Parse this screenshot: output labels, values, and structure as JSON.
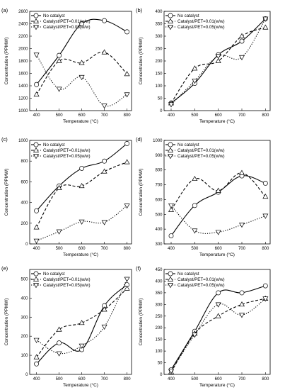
{
  "figure": {
    "stroke_color": "#000000",
    "background": "#ffffff"
  },
  "marker_shapes": [
    "circle",
    "triangle-up",
    "triangle-down"
  ],
  "line_styles": [
    "solid",
    "dashed",
    "dotted"
  ],
  "chart_data": [
    {
      "panel_label": "(a)",
      "type": "line",
      "xlabel": "Temperature (°C)",
      "ylabel": "Concentration (PPMW)",
      "xlim": [
        370,
        820
      ],
      "ylim": [
        1000,
        2600
      ],
      "xticks": [
        400,
        500,
        600,
        700,
        800
      ],
      "yticks": [
        1000,
        1200,
        1400,
        1600,
        1800,
        2000,
        2200,
        2400,
        2600
      ],
      "legend_position": "top-left",
      "x": [
        400,
        500,
        600,
        700,
        800
      ],
      "series": [
        {
          "name": "No catalyst",
          "values": [
            1420,
            1890,
            2400,
            2450,
            2270
          ]
        },
        {
          "name": "Catalyst/PET=0.01(w/w)",
          "values": [
            1260,
            1800,
            1770,
            1940,
            1590
          ]
        },
        {
          "name": "Catalyst/PET=0.05(w/w)",
          "values": [
            1900,
            1350,
            1540,
            1080,
            1260
          ]
        }
      ]
    },
    {
      "panel_label": "(b)",
      "type": "line",
      "xlabel": "Temperature (°C)",
      "ylabel": "Concentration (PPMW)",
      "xlim": [
        370,
        820
      ],
      "ylim": [
        0,
        400
      ],
      "xticks": [
        400,
        500,
        600,
        700,
        800
      ],
      "yticks": [
        0,
        50,
        100,
        150,
        200,
        250,
        300,
        350,
        400
      ],
      "legend_position": "top-left",
      "x": [
        400,
        500,
        600,
        700,
        800
      ],
      "series": [
        {
          "name": "No catalyst",
          "values": [
            30,
            110,
            225,
            280,
            370
          ]
        },
        {
          "name": "Catalyst/PET=0.01(w/w)",
          "values": [
            30,
            170,
            200,
            300,
            335
          ]
        },
        {
          "name": "Catalyst/PET=0.05(w/w)",
          "values": [
            25,
            120,
            220,
            215,
            370
          ]
        }
      ]
    },
    {
      "panel_label": "(c)",
      "type": "line",
      "xlabel": "Temperature (°C)",
      "ylabel": "Concentration (PPMW)",
      "xlim": [
        370,
        820
      ],
      "ylim": [
        0,
        1000
      ],
      "xticks": [
        400,
        500,
        600,
        700,
        800
      ],
      "yticks": [
        0,
        200,
        400,
        600,
        800,
        1000
      ],
      "legend_position": "top-left",
      "x": [
        400,
        500,
        600,
        700,
        800
      ],
      "series": [
        {
          "name": "No catalyst",
          "values": [
            320,
            560,
            730,
            800,
            970
          ]
        },
        {
          "name": "Catalyst/PET=0.01(w/w)",
          "values": [
            160,
            540,
            560,
            700,
            790
          ]
        },
        {
          "name": "Catalyst/PET=0.05(w/w)",
          "values": [
            30,
            120,
            215,
            210,
            370
          ]
        }
      ]
    },
    {
      "panel_label": "(d)",
      "type": "line",
      "xlabel": "Temperature (°C)",
      "ylabel": "Concentration (PPMW)",
      "xlim": [
        370,
        820
      ],
      "ylim": [
        300,
        1000
      ],
      "xticks": [
        400,
        500,
        600,
        700,
        800
      ],
      "yticks": [
        300,
        400,
        500,
        600,
        700,
        800,
        900,
        1000
      ],
      "legend_position": "top-left",
      "x": [
        400,
        500,
        600,
        700,
        800
      ],
      "series": [
        {
          "name": "No catalyst",
          "values": [
            355,
            560,
            650,
            760,
            710
          ]
        },
        {
          "name": "Catalyst/PET=0.01(w/w)",
          "values": [
            530,
            740,
            660,
            780,
            620
          ]
        },
        {
          "name": "Catalyst/PET=0.05(w/w)",
          "values": [
            560,
            390,
            380,
            430,
            490
          ]
        }
      ]
    },
    {
      "panel_label": "(e)",
      "type": "line",
      "xlabel": "Temperature (°C)",
      "ylabel": "Concentration (PPMW)",
      "xlim": [
        370,
        820
      ],
      "ylim": [
        0,
        550
      ],
      "xticks": [
        400,
        500,
        600,
        700,
        800
      ],
      "yticks": [
        0,
        100,
        200,
        300,
        400,
        500
      ],
      "legend_position": "top-left",
      "x": [
        400,
        500,
        600,
        700,
        800
      ],
      "series": [
        {
          "name": "No catalyst",
          "values": [
            55,
            165,
            130,
            360,
            470
          ]
        },
        {
          "name": "Catalyst/PET=0.01(w/w)",
          "values": [
            90,
            235,
            270,
            340,
            450
          ]
        },
        {
          "name": "Catalyst/PET=0.05(w/w)",
          "values": [
            180,
            110,
            150,
            250,
            500
          ]
        }
      ]
    },
    {
      "panel_label": "(f)",
      "type": "line",
      "xlabel": "Temperature (°C)",
      "ylabel": "Concentration (PPMW)",
      "xlim": [
        370,
        820
      ],
      "ylim": [
        0,
        450
      ],
      "xticks": [
        400,
        500,
        600,
        700,
        800
      ],
      "yticks": [
        0,
        50,
        100,
        150,
        200,
        250,
        300,
        350,
        400,
        450
      ],
      "legend_position": "top-left",
      "x": [
        400,
        500,
        600,
        700,
        800
      ],
      "series": [
        {
          "name": "No catalyst",
          "values": [
            20,
            185,
            350,
            350,
            380
          ]
        },
        {
          "name": "Catalyst/PET=0.01(w/w)",
          "values": [
            10,
            175,
            250,
            300,
            325
          ]
        },
        {
          "name": "Catalyst/PET=0.05(w/w)",
          "values": [
            15,
            170,
            300,
            255,
            325
          ]
        }
      ]
    }
  ]
}
